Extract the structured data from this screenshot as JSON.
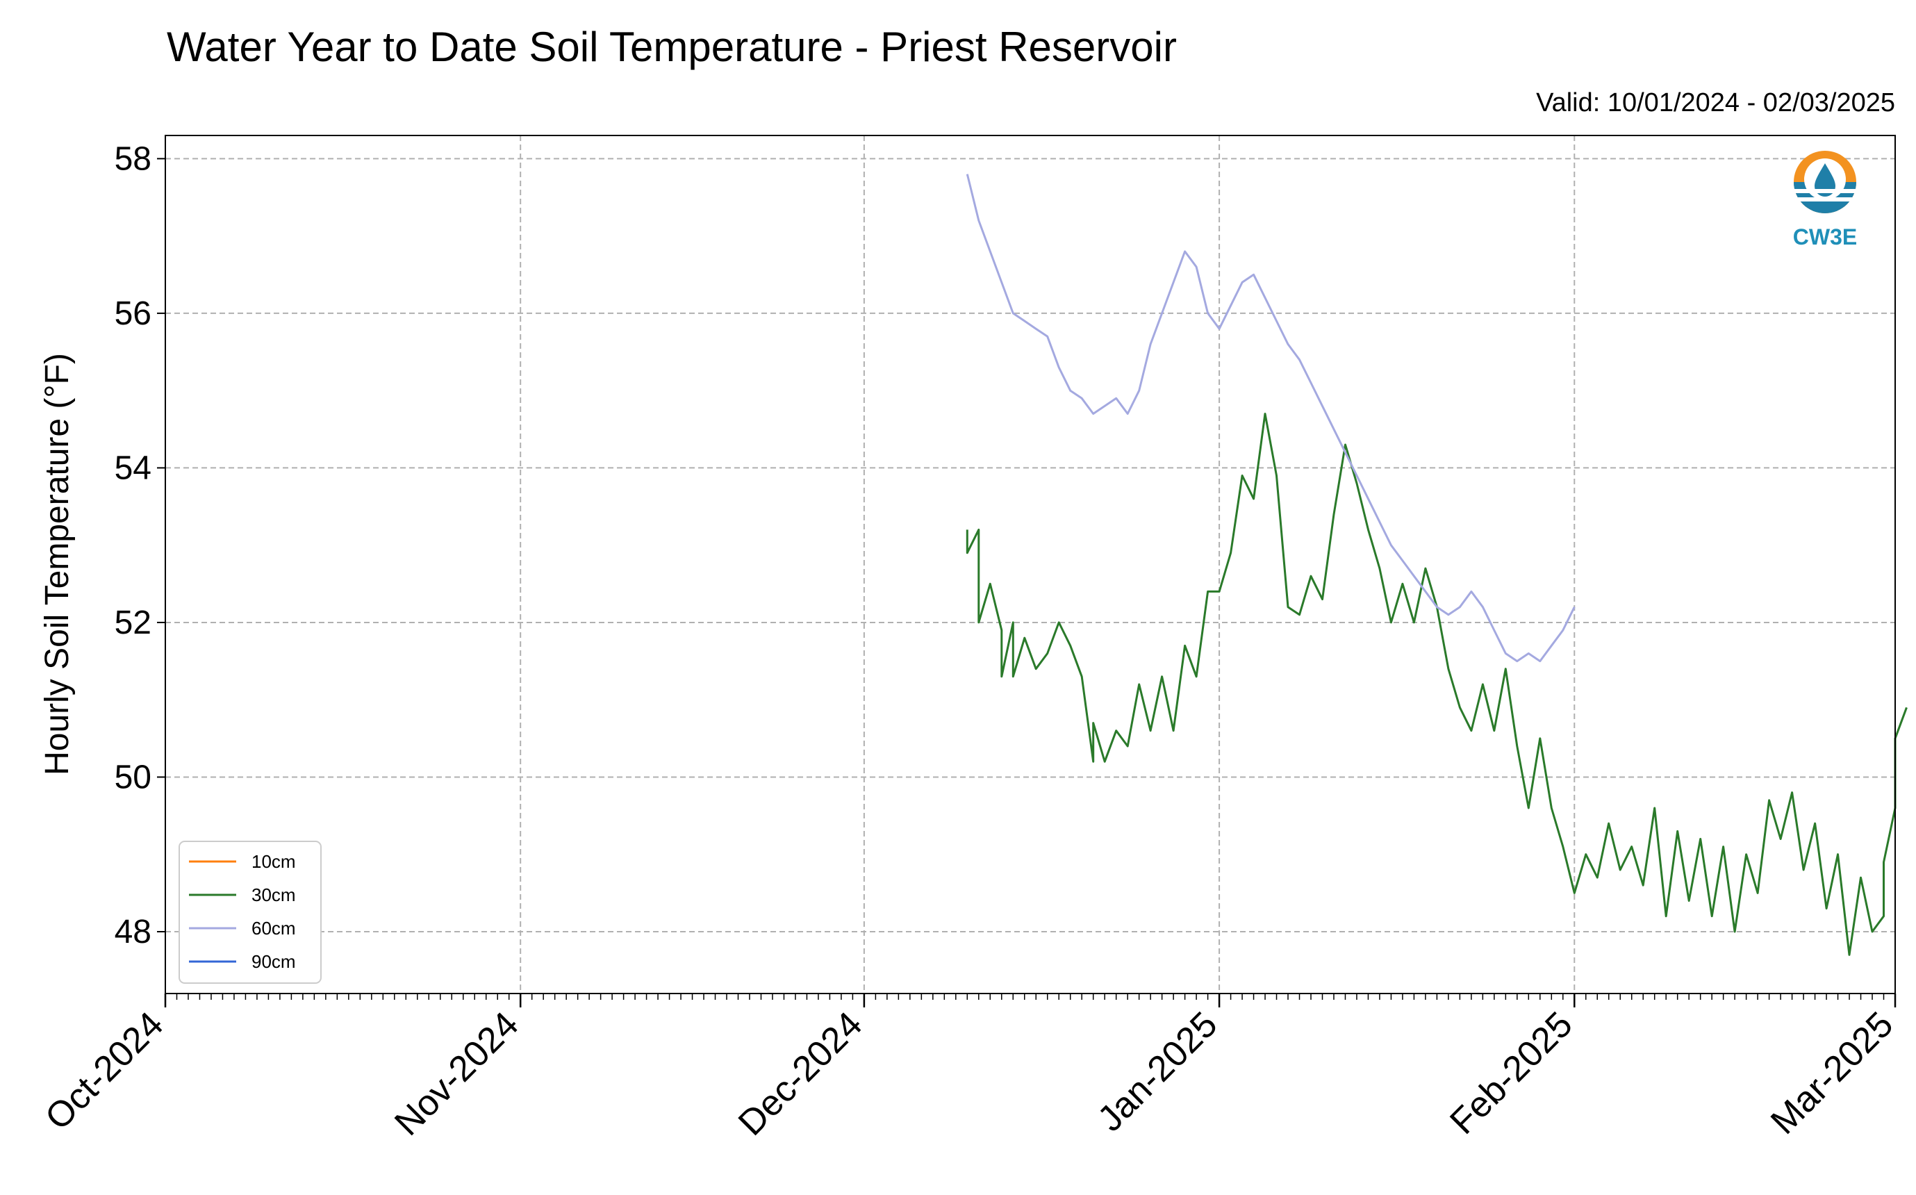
{
  "chart_data": {
    "type": "line",
    "title": "Water Year to Date Soil Temperature - Priest Reservoir",
    "subtitle": "Valid: 10/01/2024 - 02/03/2025",
    "ylabel": "Hourly Soil Temperature (°F)",
    "xlabel": "",
    "x_ticks": [
      "Oct-2024",
      "Nov-2024",
      "Dec-2024",
      "Jan-2025",
      "Feb-2025",
      "Mar-2025"
    ],
    "x_tick_dates": [
      "2024-10-01",
      "2024-11-01",
      "2024-12-01",
      "2025-01-01",
      "2025-02-01",
      "2025-03-01"
    ],
    "xlim": [
      "2024-10-01",
      "2025-03-01"
    ],
    "y_ticks": [
      48,
      50,
      52,
      54,
      56,
      58
    ],
    "ylim": [
      47.2,
      58.3
    ],
    "grid": true,
    "legend_placement": "lower-left",
    "series": [
      {
        "name": "10cm",
        "color": "#ff7f0e",
        "points": []
      },
      {
        "name": "30cm",
        "color": "#2a7a2a",
        "points": [
          [
            "2024-12-10",
            53.2
          ],
          [
            "2024-12-10",
            52.9
          ],
          [
            "2024-12-11",
            53.2
          ],
          [
            "2024-12-11",
            52.0
          ],
          [
            "2024-12-12",
            52.5
          ],
          [
            "2024-12-13",
            51.9
          ],
          [
            "2024-12-13",
            51.3
          ],
          [
            "2024-12-14",
            52.0
          ],
          [
            "2024-12-14",
            51.3
          ],
          [
            "2024-12-15",
            51.8
          ],
          [
            "2024-12-16",
            51.4
          ],
          [
            "2024-12-17",
            51.6
          ],
          [
            "2024-12-18",
            52.0
          ],
          [
            "2024-12-19",
            51.7
          ],
          [
            "2024-12-20",
            51.3
          ],
          [
            "2024-12-21",
            50.2
          ],
          [
            "2024-12-21",
            50.7
          ],
          [
            "2024-12-22",
            50.2
          ],
          [
            "2024-12-23",
            50.6
          ],
          [
            "2024-12-24",
            50.4
          ],
          [
            "2024-12-25",
            51.2
          ],
          [
            "2024-12-26",
            50.6
          ],
          [
            "2024-12-27",
            51.3
          ],
          [
            "2024-12-28",
            50.6
          ],
          [
            "2024-12-29",
            51.7
          ],
          [
            "2024-12-30",
            51.3
          ],
          [
            "2024-12-31",
            52.4
          ],
          [
            "2025-01-01",
            52.4
          ],
          [
            "2025-01-02",
            52.9
          ],
          [
            "2025-01-03",
            53.9
          ],
          [
            "2025-01-04",
            53.6
          ],
          [
            "2025-01-05",
            54.7
          ],
          [
            "2025-01-06",
            53.9
          ],
          [
            "2025-01-07",
            52.2
          ],
          [
            "2025-01-08",
            52.1
          ],
          [
            "2025-01-09",
            52.6
          ],
          [
            "2025-01-10",
            52.3
          ],
          [
            "2025-01-11",
            53.4
          ],
          [
            "2025-01-12",
            54.3
          ],
          [
            "2025-01-13",
            53.8
          ],
          [
            "2025-01-14",
            53.2
          ],
          [
            "2025-01-15",
            52.7
          ],
          [
            "2025-01-16",
            52.0
          ],
          [
            "2025-01-17",
            52.5
          ],
          [
            "2025-01-18",
            52.0
          ],
          [
            "2025-01-19",
            52.7
          ],
          [
            "2025-01-20",
            52.2
          ],
          [
            "2025-01-21",
            51.4
          ],
          [
            "2025-01-22",
            50.9
          ],
          [
            "2025-01-23",
            50.6
          ],
          [
            "2025-01-24",
            51.2
          ],
          [
            "2025-01-25",
            50.6
          ],
          [
            "2025-01-26",
            51.4
          ],
          [
            "2025-01-27",
            50.4
          ],
          [
            "2025-01-28",
            49.6
          ],
          [
            "2025-01-29",
            50.5
          ],
          [
            "2025-01-30",
            49.6
          ],
          [
            "2025-01-31",
            49.1
          ],
          [
            "2025-02-01",
            48.5
          ],
          [
            "2025-02-02",
            49.0
          ],
          [
            "2025-02-03",
            48.7
          ],
          [
            "2025-02-04",
            49.4
          ],
          [
            "2025-02-05",
            48.8
          ],
          [
            "2025-02-06",
            49.1
          ],
          [
            "2025-02-07",
            48.6
          ],
          [
            "2025-02-08",
            49.6
          ],
          [
            "2025-02-09",
            48.2
          ],
          [
            "2025-02-10",
            49.3
          ],
          [
            "2025-02-11",
            48.4
          ],
          [
            "2025-02-12",
            49.2
          ],
          [
            "2025-02-13",
            48.2
          ],
          [
            "2025-02-14",
            49.1
          ],
          [
            "2025-02-15",
            48.0
          ],
          [
            "2025-02-16",
            49.0
          ],
          [
            "2025-02-17",
            48.5
          ],
          [
            "2025-02-18",
            49.7
          ],
          [
            "2025-02-19",
            49.2
          ],
          [
            "2025-02-20",
            49.8
          ],
          [
            "2025-02-21",
            48.8
          ],
          [
            "2025-02-22",
            49.4
          ],
          [
            "2025-02-23",
            48.3
          ],
          [
            "2025-02-24",
            49.0
          ],
          [
            "2025-02-25",
            47.7
          ],
          [
            "2025-02-26",
            48.7
          ],
          [
            "2025-02-27",
            48.0
          ],
          [
            "2025-02-28",
            48.2
          ],
          [
            "2025-02-28",
            48.9
          ],
          [
            "2025-03-01",
            49.6
          ],
          [
            "2025-03-01",
            50.5
          ],
          [
            "2025-03-02",
            50.9
          ]
        ]
      },
      {
        "name": "60cm",
        "color": "#a4a9e0",
        "points": [
          [
            "2024-12-10",
            57.8
          ],
          [
            "2024-12-11",
            57.2
          ],
          [
            "2024-12-12",
            56.8
          ],
          [
            "2024-12-13",
            56.4
          ],
          [
            "2024-12-14",
            56.0
          ],
          [
            "2024-12-15",
            55.9
          ],
          [
            "2024-12-16",
            55.8
          ],
          [
            "2024-12-17",
            55.7
          ],
          [
            "2024-12-18",
            55.3
          ],
          [
            "2024-12-19",
            55.0
          ],
          [
            "2024-12-20",
            54.9
          ],
          [
            "2024-12-21",
            54.7
          ],
          [
            "2024-12-22",
            54.8
          ],
          [
            "2024-12-23",
            54.9
          ],
          [
            "2024-12-24",
            54.7
          ],
          [
            "2024-12-25",
            55.0
          ],
          [
            "2024-12-26",
            55.6
          ],
          [
            "2024-12-27",
            56.0
          ],
          [
            "2024-12-28",
            56.4
          ],
          [
            "2024-12-29",
            56.8
          ],
          [
            "2024-12-30",
            56.6
          ],
          [
            "2024-12-31",
            56.0
          ],
          [
            "2025-01-01",
            55.8
          ],
          [
            "2025-01-02",
            56.1
          ],
          [
            "2025-01-03",
            56.4
          ],
          [
            "2025-01-04",
            56.5
          ],
          [
            "2025-01-05",
            56.2
          ],
          [
            "2025-01-06",
            55.9
          ],
          [
            "2025-01-07",
            55.6
          ],
          [
            "2025-01-08",
            55.4
          ],
          [
            "2025-01-09",
            55.1
          ],
          [
            "2025-01-10",
            54.8
          ],
          [
            "2025-01-11",
            54.5
          ],
          [
            "2025-01-12",
            54.2
          ],
          [
            "2025-01-13",
            53.9
          ],
          [
            "2025-01-14",
            53.6
          ],
          [
            "2025-01-15",
            53.3
          ],
          [
            "2025-01-16",
            53.0
          ],
          [
            "2025-01-17",
            52.8
          ],
          [
            "2025-01-18",
            52.6
          ],
          [
            "2025-01-19",
            52.4
          ],
          [
            "2025-01-20",
            52.2
          ],
          [
            "2025-01-21",
            52.1
          ],
          [
            "2025-01-22",
            52.2
          ],
          [
            "2025-01-23",
            52.4
          ],
          [
            "2025-01-24",
            52.2
          ],
          [
            "2025-01-25",
            51.9
          ],
          [
            "2025-01-26",
            51.6
          ],
          [
            "2025-01-27",
            51.5
          ],
          [
            "2025-01-28",
            51.6
          ],
          [
            "2025-01-29",
            51.5
          ],
          [
            "2025-01-30",
            51.7
          ],
          [
            "2025-01-31",
            51.9
          ],
          [
            "2025-02-01",
            52.2
          ]
        ]
      },
      {
        "name": "90cm",
        "color": "#3366d6",
        "points": []
      }
    ]
  },
  "logo": {
    "text": "CW3E",
    "ring_color": "#f39220",
    "wave_color": "#1f7fa8"
  }
}
